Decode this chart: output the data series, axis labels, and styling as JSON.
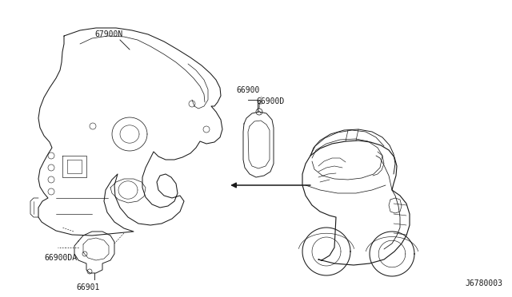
{
  "bg_color": "#ffffff",
  "line_color": "#1a1a1a",
  "label_color": "#1a1a1a",
  "diagram_id": "J6780003",
  "lw": 0.75,
  "labels": {
    "part1": "67900N",
    "part2": "66900",
    "part3": "66900D",
    "part4": "66900DA",
    "part5": "66901"
  },
  "figsize": [
    6.4,
    3.72
  ],
  "dpi": 100
}
